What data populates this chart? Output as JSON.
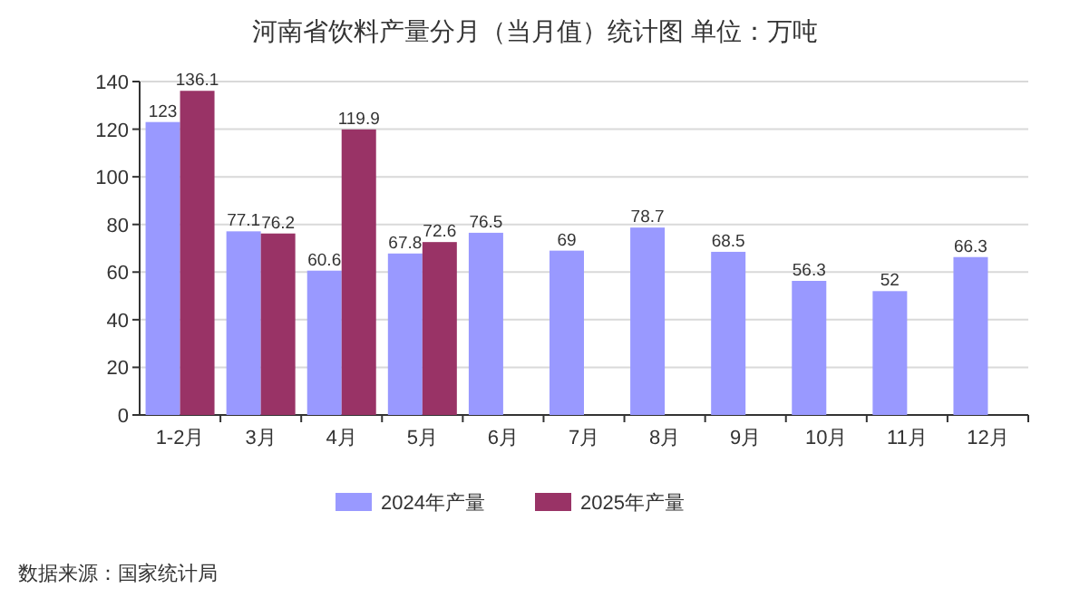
{
  "chart_data": {
    "type": "bar",
    "title": "河南省饮料产量分月（当月值）统计图 单位：万吨",
    "categories": [
      "1-2月",
      "3月",
      "4月",
      "5月",
      "6月",
      "7月",
      "8月",
      "9月",
      "10月",
      "11月",
      "12月"
    ],
    "series": [
      {
        "name": "2024年产量",
        "color": "#9999ff",
        "values": [
          123,
          77.1,
          60.6,
          67.8,
          76.5,
          69,
          78.7,
          68.5,
          56.3,
          52,
          66.3
        ]
      },
      {
        "name": "2025年产量",
        "color": "#993366",
        "values": [
          136.1,
          76.2,
          119.9,
          72.6,
          null,
          null,
          null,
          null,
          null,
          null,
          null
        ]
      }
    ],
    "ylim": [
      0,
      140
    ],
    "yticks": [
      0,
      20,
      40,
      60,
      80,
      100,
      120,
      140
    ],
    "grid": "y",
    "legend": "bottom",
    "data_labels": true,
    "annotations": [
      "数据来源：国家统计局"
    ]
  }
}
